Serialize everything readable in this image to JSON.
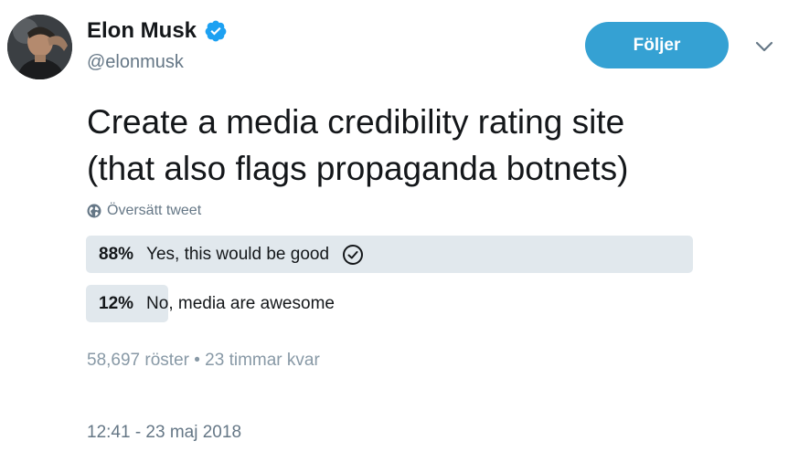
{
  "author": {
    "display_name": "Elon Musk",
    "handle": "@elonmusk",
    "verified": true
  },
  "follow_button": {
    "label": "Följer"
  },
  "tweet": {
    "text_line1": "Create a media credibility rating site",
    "text_line2": "(that also flags propaganda botnets)",
    "translate_label": "Översätt tweet"
  },
  "poll": {
    "options": [
      {
        "percent_label": "88%",
        "percent_value": 88,
        "label": "Yes, this would be good",
        "selected": true
      },
      {
        "percent_label": "12%",
        "percent_value": 12,
        "label": "No, media are awesome",
        "selected": false
      }
    ],
    "meta": "58,697 röster • 23 timmar kvar"
  },
  "timestamp": "12:41 - 23 maj 2018",
  "colors": {
    "accent": "#35a1d3",
    "verified_badge": "#1da1f2",
    "poll_bar": "#e1e8ed",
    "muted_text": "#657786"
  },
  "icons": {
    "verified": "verified-badge-icon",
    "caret": "chevron-down-icon",
    "translate": "globe-icon",
    "selected_option": "check-circle-icon"
  }
}
